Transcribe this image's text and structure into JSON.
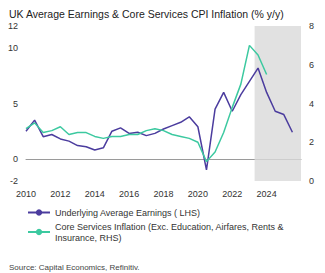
{
  "chart_data": {
    "type": "line",
    "title": "UK Average Earnings & Core Services CPI Inflation (% y/y)",
    "source": "Source: Capital Economics, Refinitiv.",
    "x": [
      2010,
      2010.5,
      2011,
      2011.5,
      2012,
      2012.5,
      2013,
      2013.5,
      2014,
      2014.5,
      2015,
      2015.5,
      2016,
      2016.5,
      2017,
      2017.5,
      2018,
      2018.5,
      2019,
      2019.5,
      2020,
      2020.5,
      2021,
      2021.5,
      2022,
      2022.5,
      2023,
      2023.5,
      2024,
      2024.5,
      2025,
      2025.5
    ],
    "series": [
      {
        "name": "Underlying Average Earnings ( LHS)",
        "color": "#4b3c9e",
        "axis": "y",
        "values": [
          2.5,
          3.5,
          2.0,
          2.2,
          1.8,
          1.6,
          1.2,
          1.1,
          0.8,
          1.0,
          2.5,
          2.8,
          2.3,
          2.4,
          2.1,
          2.3,
          2.7,
          3.0,
          3.3,
          3.8,
          2.9,
          -1.0,
          4.5,
          6.0,
          4.3,
          5.8,
          7.0,
          8.2,
          6.0,
          4.3,
          4.0,
          2.4
        ]
      },
      {
        "name": "Core Services Inflation (Exc. Education, Airfares, Rents & Insurance, RHS)",
        "color": "#3cc9a0",
        "axis": "y2",
        "values": [
          2.7,
          3.0,
          2.5,
          2.6,
          2.8,
          2.4,
          2.5,
          2.5,
          2.3,
          2.2,
          2.3,
          2.3,
          2.4,
          2.4,
          2.6,
          2.7,
          2.6,
          2.4,
          2.3,
          2.2,
          2.0,
          1.0,
          1.5,
          2.5,
          3.8,
          5.0,
          7.0,
          6.5,
          5.5,
          null,
          null,
          null
        ]
      }
    ],
    "shaded_region": [
      2023.3,
      2026
    ],
    "xlim": [
      2010,
      2026
    ],
    "xticks": [
      2010,
      2012,
      2014,
      2016,
      2018,
      2020,
      2022,
      2024
    ],
    "ylim": [
      -2,
      12
    ],
    "yticks": [
      -2,
      0,
      5,
      10,
      12
    ],
    "y2lim": [
      0,
      8
    ],
    "y2ticks": [
      0,
      2,
      4,
      6,
      8
    ],
    "grid": false,
    "legend": "bottom"
  }
}
